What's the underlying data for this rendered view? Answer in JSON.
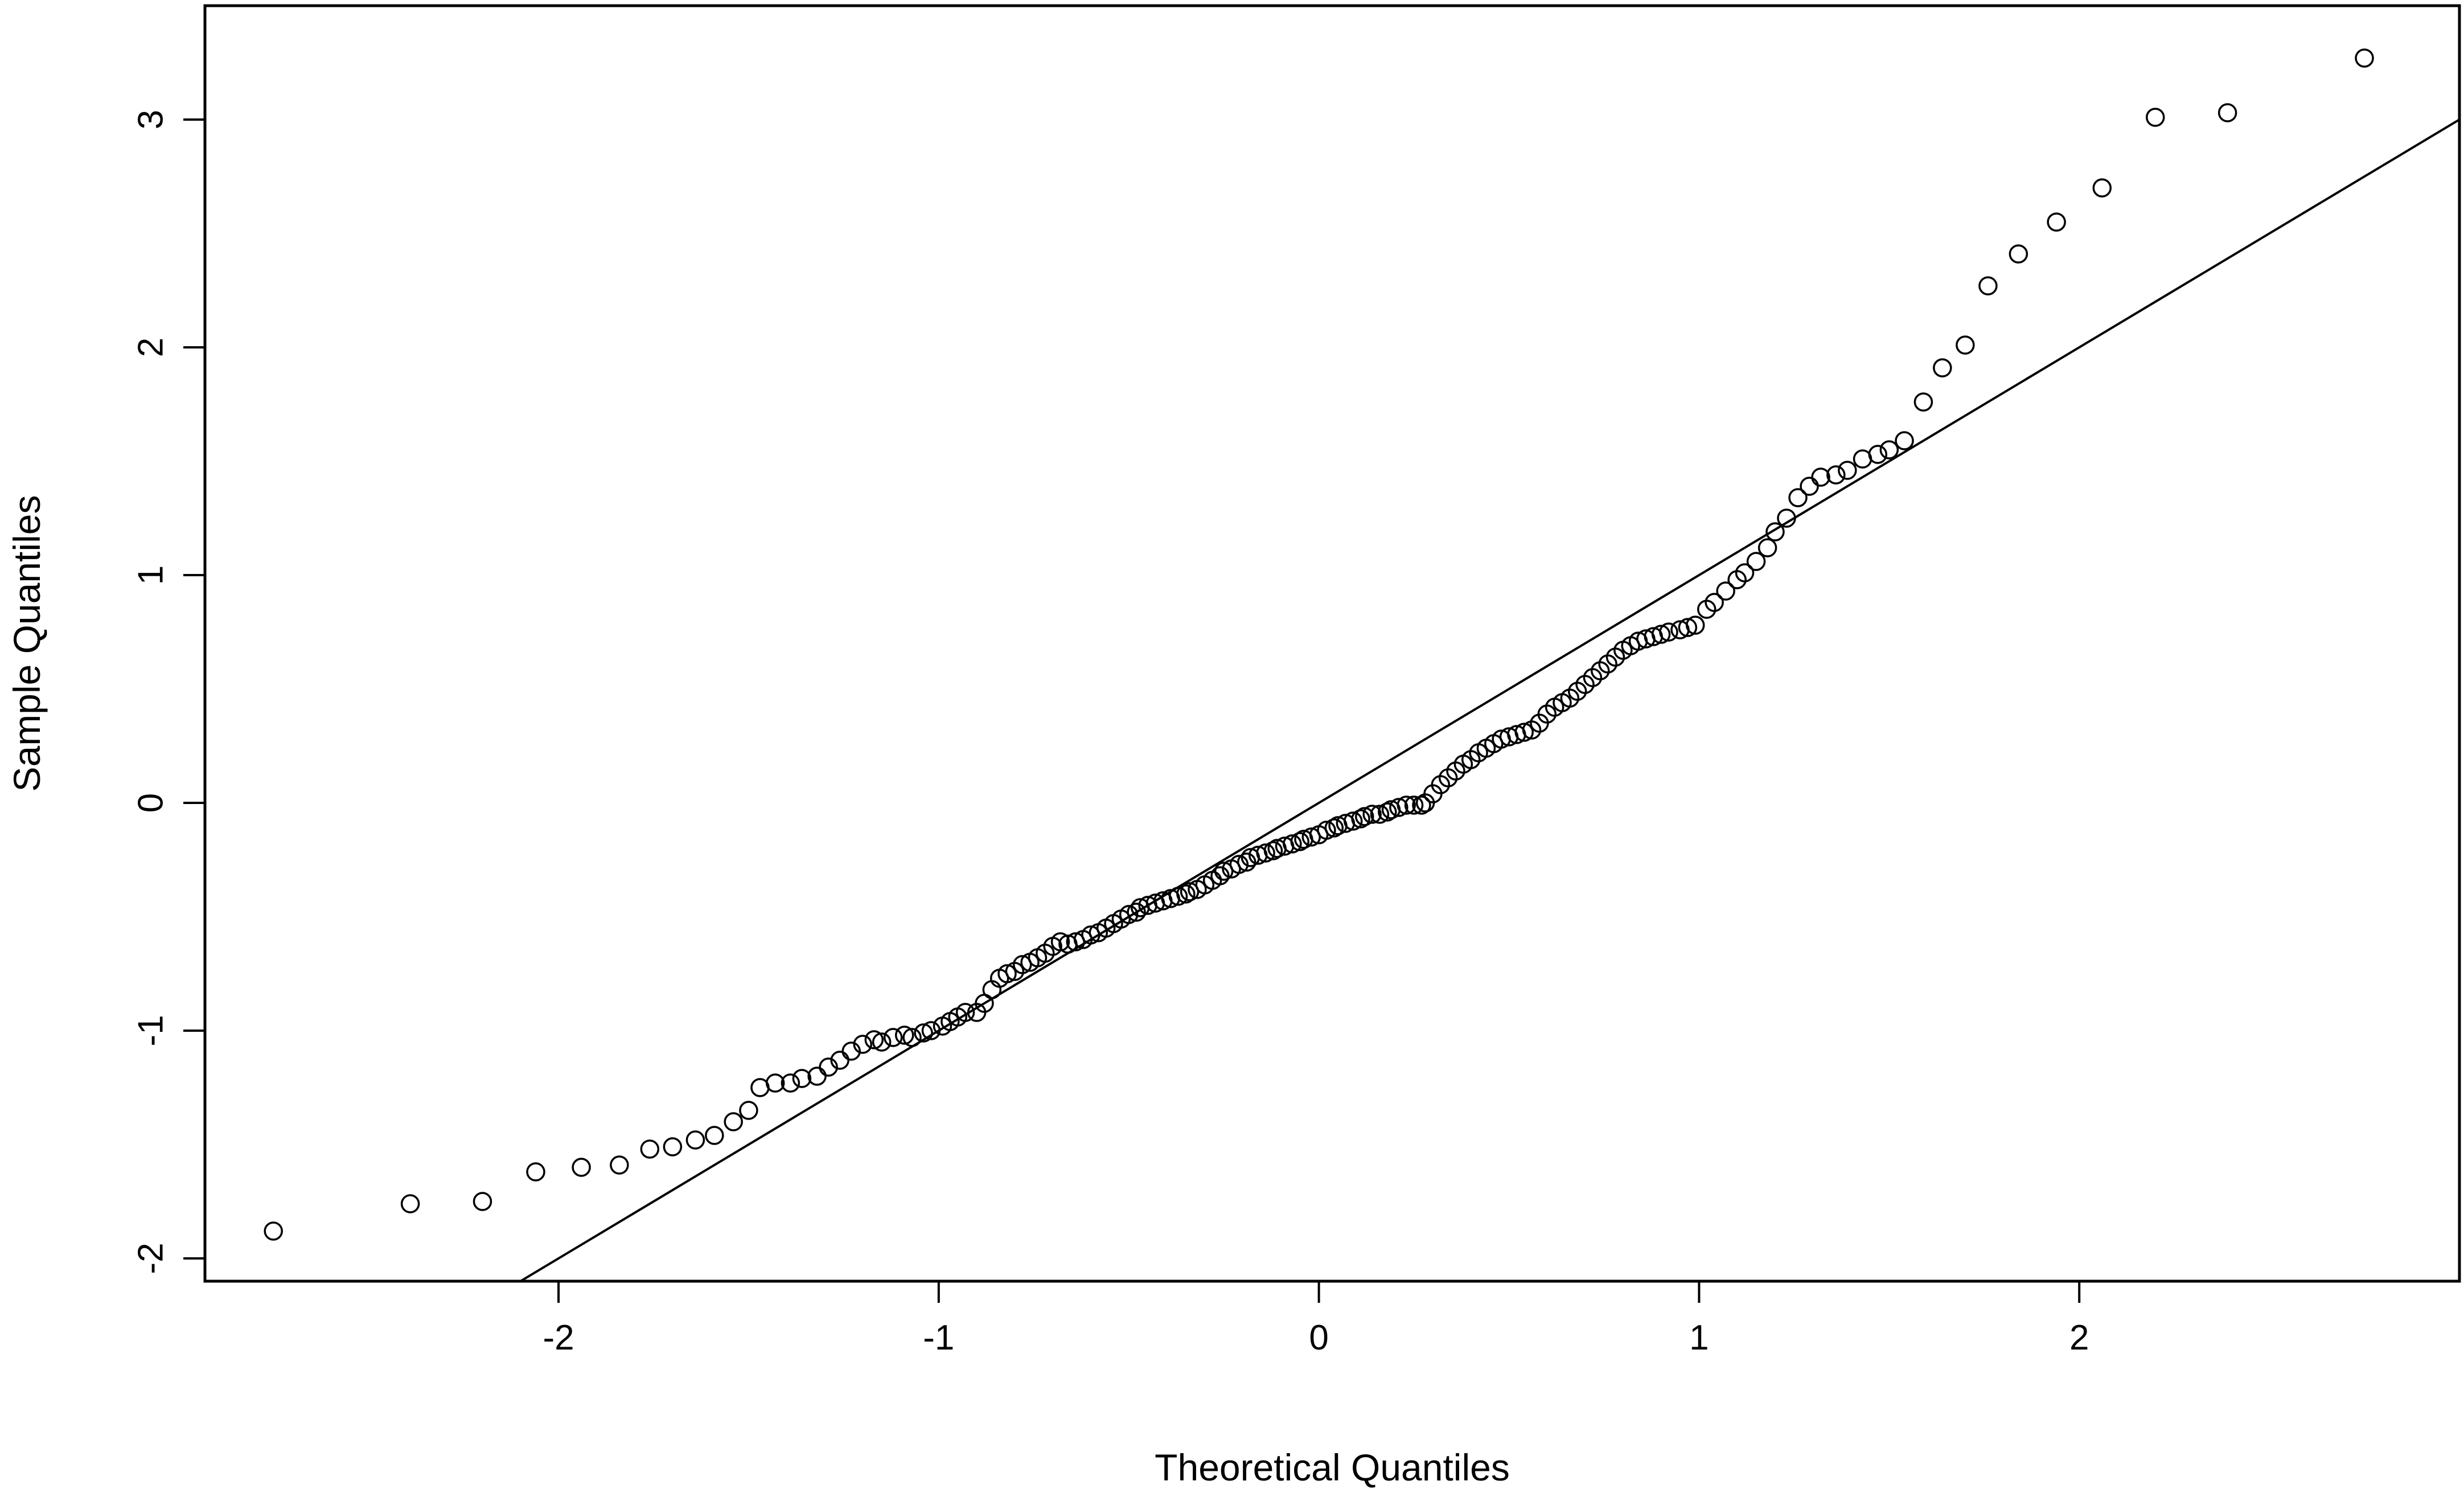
{
  "chart_data": {
    "type": "scatter",
    "title": "",
    "xlabel": "Theoretical Quantiles",
    "ylabel": "Sample Quantiles",
    "xlim": [
      -2.93,
      3.0
    ],
    "ylim": [
      -2.1,
      3.5
    ],
    "x_ticks": [
      -2,
      -1,
      0,
      1,
      2
    ],
    "y_ticks": [
      -2,
      -1,
      0,
      1,
      2,
      3
    ],
    "x_tick_labels": [
      "-2",
      "-1",
      "0",
      "1",
      "2"
    ],
    "y_tick_labels": [
      "-2",
      "-1",
      "0",
      "1",
      "2",
      "3"
    ],
    "grid": false,
    "reference_line": {
      "slope": 1.0,
      "intercept": 0.0
    },
    "series": [
      {
        "marker": "open-circle",
        "points": [
          [
            -2.75,
            -1.88
          ],
          [
            -2.39,
            -1.76
          ],
          [
            -2.2,
            -1.75
          ],
          [
            -2.06,
            -1.62
          ],
          [
            -1.94,
            -1.6
          ],
          [
            -1.84,
            -1.59
          ],
          [
            -1.76,
            -1.52
          ],
          [
            -1.7,
            -1.51
          ],
          [
            -1.64,
            -1.48
          ],
          [
            -1.59,
            -1.46
          ],
          [
            -1.54,
            -1.4
          ],
          [
            -1.5,
            -1.35
          ],
          [
            -1.47,
            -1.25
          ],
          [
            -1.43,
            -1.23
          ],
          [
            -1.39,
            -1.23
          ],
          [
            -1.36,
            -1.21
          ],
          [
            -1.32,
            -1.2
          ],
          [
            -1.29,
            -1.16
          ],
          [
            -1.26,
            -1.13
          ],
          [
            -1.23,
            -1.09
          ],
          [
            -1.2,
            -1.06
          ],
          [
            -1.17,
            -1.04
          ],
          [
            -1.15,
            -1.05
          ],
          [
            -1.12,
            -1.03
          ],
          [
            -1.09,
            -1.02
          ],
          [
            -1.07,
            -1.03
          ],
          [
            -1.04,
            -1.01
          ],
          [
            -1.02,
            -1.0
          ],
          [
            -0.99,
            -0.98
          ],
          [
            -0.97,
            -0.96
          ],
          [
            -0.95,
            -0.94
          ],
          [
            -0.93,
            -0.92
          ],
          [
            -0.9,
            -0.92
          ],
          [
            -0.88,
            -0.88
          ],
          [
            -0.86,
            -0.82
          ],
          [
            -0.84,
            -0.77
          ],
          [
            -0.82,
            -0.75
          ],
          [
            -0.8,
            -0.74
          ],
          [
            -0.78,
            -0.71
          ],
          [
            -0.76,
            -0.7
          ],
          [
            -0.74,
            -0.68
          ],
          [
            -0.72,
            -0.66
          ],
          [
            -0.7,
            -0.63
          ],
          [
            -0.68,
            -0.61
          ],
          [
            -0.66,
            -0.62
          ],
          [
            -0.64,
            -0.61
          ],
          [
            -0.62,
            -0.6
          ],
          [
            -0.6,
            -0.58
          ],
          [
            -0.58,
            -0.57
          ],
          [
            -0.56,
            -0.55
          ],
          [
            -0.54,
            -0.53
          ],
          [
            -0.52,
            -0.51
          ],
          [
            -0.5,
            -0.49
          ],
          [
            -0.48,
            -0.48
          ],
          [
            -0.47,
            -0.46
          ],
          [
            -0.45,
            -0.45
          ],
          [
            -0.43,
            -0.44
          ],
          [
            -0.41,
            -0.43
          ],
          [
            -0.39,
            -0.42
          ],
          [
            -0.37,
            -0.41
          ],
          [
            -0.35,
            -0.4
          ],
          [
            -0.34,
            -0.39
          ],
          [
            -0.32,
            -0.38
          ],
          [
            -0.3,
            -0.36
          ],
          [
            -0.28,
            -0.34
          ],
          [
            -0.26,
            -0.32
          ],
          [
            -0.25,
            -0.3
          ],
          [
            -0.23,
            -0.29
          ],
          [
            -0.21,
            -0.27
          ],
          [
            -0.19,
            -0.26
          ],
          [
            -0.18,
            -0.24
          ],
          [
            -0.16,
            -0.23
          ],
          [
            -0.14,
            -0.22
          ],
          [
            -0.12,
            -0.21
          ],
          [
            -0.11,
            -0.2
          ],
          [
            -0.09,
            -0.19
          ],
          [
            -0.07,
            -0.18
          ],
          [
            -0.05,
            -0.17
          ],
          [
            -0.04,
            -0.16
          ],
          [
            -0.02,
            -0.15
          ],
          [
            0.0,
            -0.14
          ],
          [
            0.02,
            -0.12
          ],
          [
            0.04,
            -0.11
          ],
          [
            0.05,
            -0.1
          ],
          [
            0.07,
            -0.09
          ],
          [
            0.09,
            -0.08
          ],
          [
            0.11,
            -0.07
          ],
          [
            0.12,
            -0.06
          ],
          [
            0.14,
            -0.05
          ],
          [
            0.16,
            -0.05
          ],
          [
            0.18,
            -0.04
          ],
          [
            0.19,
            -0.03
          ],
          [
            0.21,
            -0.02
          ],
          [
            0.23,
            -0.01
          ],
          [
            0.25,
            -0.01
          ],
          [
            0.27,
            -0.01
          ],
          [
            0.28,
            0.0
          ],
          [
            0.3,
            0.04
          ],
          [
            0.32,
            0.08
          ],
          [
            0.34,
            0.11
          ],
          [
            0.36,
            0.14
          ],
          [
            0.38,
            0.17
          ],
          [
            0.4,
            0.19
          ],
          [
            0.42,
            0.22
          ],
          [
            0.44,
            0.24
          ],
          [
            0.46,
            0.26
          ],
          [
            0.48,
            0.28
          ],
          [
            0.5,
            0.29
          ],
          [
            0.52,
            0.3
          ],
          [
            0.54,
            0.31
          ],
          [
            0.56,
            0.32
          ],
          [
            0.58,
            0.35
          ],
          [
            0.6,
            0.39
          ],
          [
            0.62,
            0.42
          ],
          [
            0.64,
            0.44
          ],
          [
            0.66,
            0.46
          ],
          [
            0.68,
            0.49
          ],
          [
            0.7,
            0.52
          ],
          [
            0.72,
            0.55
          ],
          [
            0.74,
            0.58
          ],
          [
            0.76,
            0.61
          ],
          [
            0.78,
            0.64
          ],
          [
            0.8,
            0.67
          ],
          [
            0.82,
            0.69
          ],
          [
            0.84,
            0.71
          ],
          [
            0.86,
            0.72
          ],
          [
            0.88,
            0.73
          ],
          [
            0.9,
            0.74
          ],
          [
            0.92,
            0.75
          ],
          [
            0.95,
            0.76
          ],
          [
            0.97,
            0.77
          ],
          [
            0.99,
            0.78
          ],
          [
            1.02,
            0.85
          ],
          [
            1.04,
            0.88
          ],
          [
            1.07,
            0.93
          ],
          [
            1.1,
            0.98
          ],
          [
            1.12,
            1.01
          ],
          [
            1.15,
            1.06
          ],
          [
            1.18,
            1.12
          ],
          [
            1.2,
            1.19
          ],
          [
            1.23,
            1.25
          ],
          [
            1.26,
            1.34
          ],
          [
            1.29,
            1.39
          ],
          [
            1.32,
            1.43
          ],
          [
            1.36,
            1.44
          ],
          [
            1.39,
            1.46
          ],
          [
            1.43,
            1.51
          ],
          [
            1.47,
            1.53
          ],
          [
            1.5,
            1.55
          ],
          [
            1.54,
            1.59
          ],
          [
            1.59,
            1.76
          ],
          [
            1.64,
            1.91
          ],
          [
            1.7,
            2.01
          ],
          [
            1.76,
            2.27
          ],
          [
            1.84,
            2.41
          ],
          [
            1.94,
            2.55
          ],
          [
            2.06,
            2.7
          ],
          [
            2.2,
            3.01
          ],
          [
            2.39,
            3.03
          ],
          [
            2.75,
            3.27
          ]
        ]
      }
    ]
  }
}
